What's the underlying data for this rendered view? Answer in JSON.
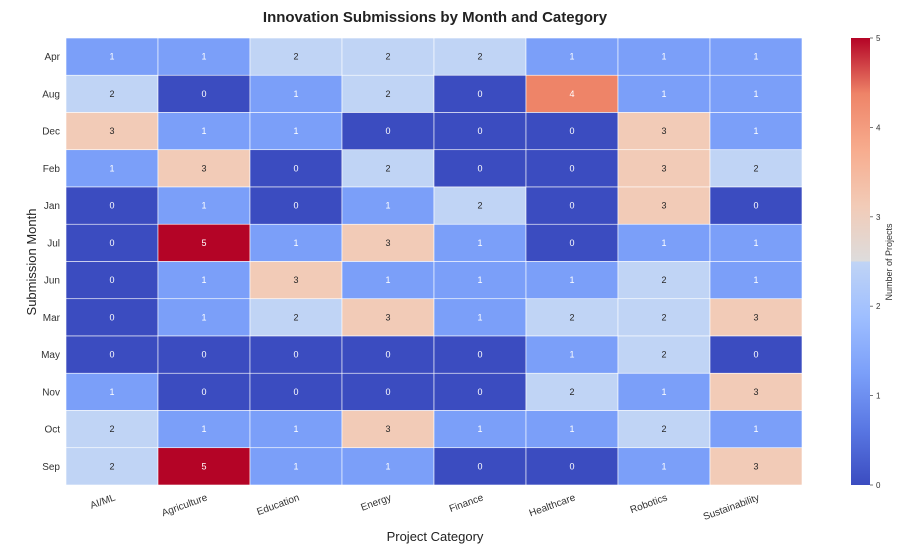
{
  "chart_data": {
    "type": "heatmap",
    "title": "Innovation Submissions by Month and Category",
    "xlabel": "Project Category",
    "ylabel": "Submission Month",
    "colorbar_label": "Number of Projects",
    "colormap": "coolwarm",
    "vmin": 0,
    "vmax": 5,
    "colorbar_ticks": [
      0,
      1,
      2,
      3,
      4,
      5
    ],
    "categories": [
      "AI/ML",
      "Agriculture",
      "Education",
      "Energy",
      "Finance",
      "Healthcare",
      "Robotics",
      "Sustainability"
    ],
    "rows": [
      "Apr",
      "Aug",
      "Dec",
      "Feb",
      "Jan",
      "Jul",
      "Jun",
      "Mar",
      "May",
      "Nov",
      "Oct",
      "Sep"
    ],
    "values": [
      [
        1,
        1,
        2,
        2,
        2,
        1,
        1,
        1
      ],
      [
        2,
        0,
        1,
        2,
        0,
        4,
        1,
        1
      ],
      [
        3,
        1,
        1,
        0,
        0,
        0,
        3,
        1
      ],
      [
        1,
        3,
        0,
        2,
        0,
        0,
        3,
        2
      ],
      [
        0,
        1,
        0,
        1,
        2,
        0,
        3,
        0
      ],
      [
        0,
        5,
        1,
        3,
        1,
        0,
        1,
        1
      ],
      [
        0,
        1,
        3,
        1,
        1,
        1,
        2,
        1
      ],
      [
        0,
        1,
        2,
        3,
        1,
        2,
        2,
        3
      ],
      [
        0,
        0,
        0,
        0,
        0,
        1,
        2,
        0
      ],
      [
        1,
        0,
        0,
        0,
        0,
        2,
        1,
        3
      ],
      [
        2,
        1,
        1,
        3,
        1,
        1,
        2,
        1
      ],
      [
        2,
        5,
        1,
        1,
        0,
        0,
        1,
        3
      ]
    ]
  }
}
